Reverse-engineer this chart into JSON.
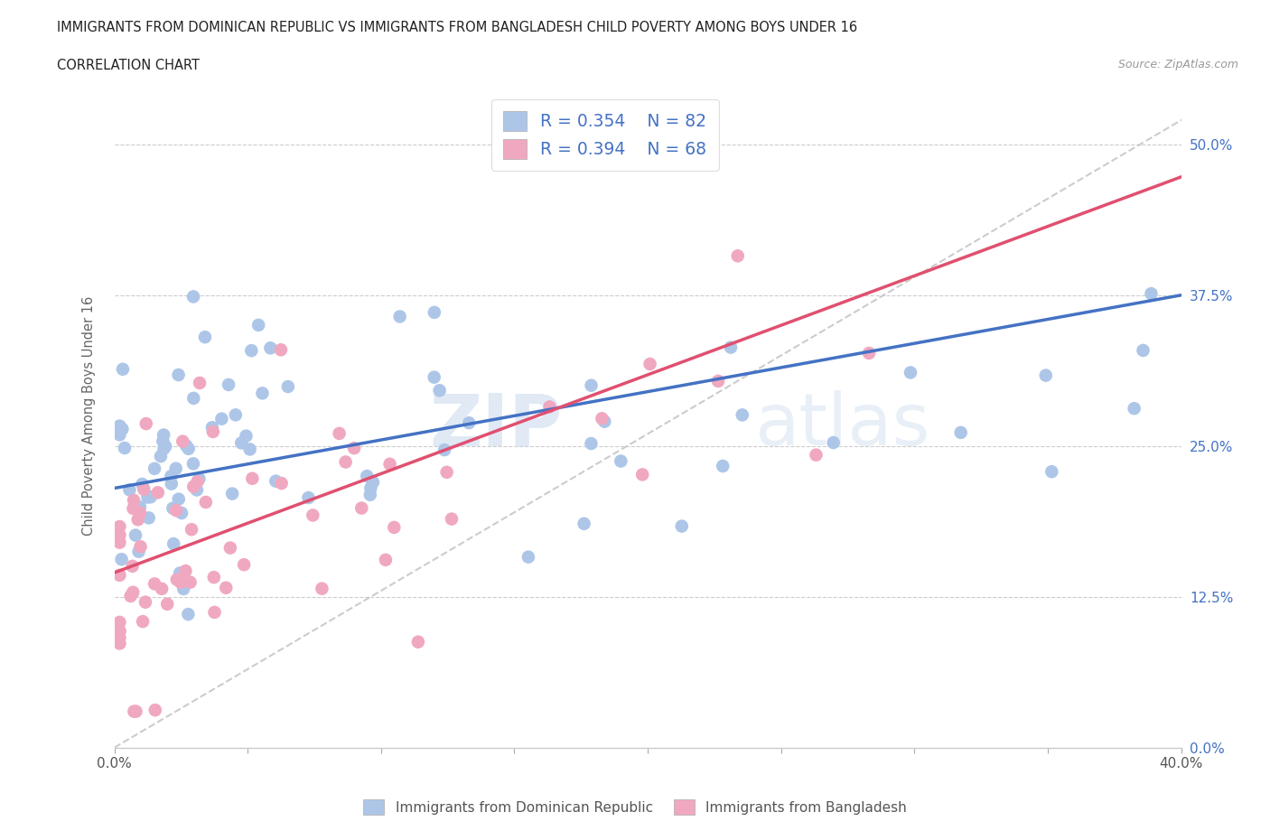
{
  "title_line1": "IMMIGRANTS FROM DOMINICAN REPUBLIC VS IMMIGRANTS FROM BANGLADESH CHILD POVERTY AMONG BOYS UNDER 16",
  "title_line2": "CORRELATION CHART",
  "source_text": "Source: ZipAtlas.com",
  "ylabel": "Child Poverty Among Boys Under 16",
  "xlim": [
    0.0,
    0.4
  ],
  "ylim": [
    0.0,
    0.55
  ],
  "ytick_positions": [
    0.0,
    0.125,
    0.25,
    0.375,
    0.5
  ],
  "ytick_labels": [
    "0.0%",
    "12.5%",
    "25.0%",
    "37.5%",
    "50.0%"
  ],
  "xtick_positions": [
    0.0,
    0.05,
    0.1,
    0.15,
    0.2,
    0.25,
    0.3,
    0.35,
    0.4
  ],
  "xtick_labels": [
    "0.0%",
    "",
    "",
    "",
    "",
    "",
    "",
    "",
    "40.0%"
  ],
  "blue_scatter_color": "#adc6e8",
  "pink_scatter_color": "#f0a8c0",
  "blue_line_color": "#4472c4",
  "pink_line_color": "#e05070",
  "gray_line_color": "#c0c0c0",
  "text_color": "#4472c4",
  "axis_label_color": "#666666",
  "legend_label1": "Immigrants from Dominican Republic",
  "legend_label2": "Immigrants from Bangladesh",
  "blue_intercept": 0.215,
  "blue_slope": 0.4,
  "pink_intercept": 0.145,
  "pink_slope": 0.82,
  "watermark_zip": "ZIP",
  "watermark_atlas": "atlas"
}
